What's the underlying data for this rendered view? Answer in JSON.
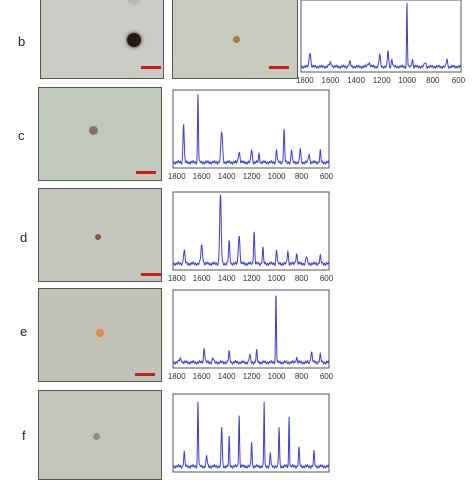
{
  "rows": [
    {
      "label": "b",
      "photos": [
        {
          "bg": "#c9cbc4",
          "particle_color": "#241a16"
        },
        {
          "bg": "#c6cbbd",
          "particle_color": "#b07a3e"
        }
      ],
      "spectrum": {
        "ticks": [
          1800,
          1600,
          1400,
          1200,
          1000,
          800,
          600
        ],
        "peaks": [
          [
            1760,
            0.22,
            14
          ],
          [
            1600,
            0.06,
            20
          ],
          [
            1450,
            0.07,
            14
          ],
          [
            1300,
            0.06,
            20
          ],
          [
            1215,
            0.18,
            12
          ],
          [
            1150,
            0.25,
            10
          ],
          [
            1120,
            0.12,
            10
          ],
          [
            1002,
            1.0,
            7
          ],
          [
            960,
            0.12,
            10
          ],
          [
            860,
            0.06,
            14
          ],
          [
            690,
            0.12,
            10
          ]
        ],
        "baseline": 0.05
      }
    },
    {
      "label": "c",
      "photos": [
        {
          "bg": "#c0c9bc",
          "particle_color": "#8a7268"
        }
      ],
      "spectrum": {
        "ticks": [
          1800,
          1600,
          1400,
          1200,
          1000,
          800,
          600
        ],
        "peaks": [
          [
            1745,
            0.55,
            11
          ],
          [
            1630,
            0.95,
            8
          ],
          [
            1440,
            0.42,
            16
          ],
          [
            1300,
            0.15,
            14
          ],
          [
            1200,
            0.18,
            12
          ],
          [
            1140,
            0.12,
            10
          ],
          [
            1000,
            0.18,
            10
          ],
          [
            940,
            0.45,
            10
          ],
          [
            880,
            0.18,
            10
          ],
          [
            810,
            0.2,
            10
          ],
          [
            740,
            0.12,
            12
          ],
          [
            650,
            0.16,
            10
          ]
        ],
        "baseline": 0.05
      }
    },
    {
      "label": "d",
      "photos": [
        {
          "bg": "#c2c6bd",
          "particle_color": "#7a5c44"
        }
      ],
      "spectrum": {
        "ticks": [
          1800,
          1600,
          1400,
          1200,
          1000,
          800,
          600
        ],
        "peaks": [
          [
            1740,
            0.18,
            14
          ],
          [
            1600,
            0.25,
            16
          ],
          [
            1450,
            0.95,
            14
          ],
          [
            1380,
            0.3,
            12
          ],
          [
            1300,
            0.4,
            14
          ],
          [
            1180,
            0.45,
            10
          ],
          [
            1110,
            0.22,
            10
          ],
          [
            1000,
            0.2,
            10
          ],
          [
            910,
            0.18,
            10
          ],
          [
            840,
            0.14,
            12
          ],
          [
            760,
            0.1,
            12
          ],
          [
            650,
            0.1,
            12
          ]
        ],
        "baseline": 0.06
      }
    },
    {
      "label": "e",
      "photos": [
        {
          "bg": "#c1c3b9",
          "particle_color": "#e08a52"
        }
      ],
      "spectrum": {
        "ticks": [
          1800,
          1600,
          1400,
          1200,
          1000,
          800,
          600
        ],
        "peaks": [
          [
            1770,
            0.05,
            20
          ],
          [
            1580,
            0.2,
            12
          ],
          [
            1510,
            0.06,
            12
          ],
          [
            1380,
            0.14,
            12
          ],
          [
            1215,
            0.1,
            12
          ],
          [
            1160,
            0.16,
            10
          ],
          [
            1005,
            0.95,
            8
          ],
          [
            840,
            0.07,
            12
          ],
          [
            720,
            0.14,
            14
          ],
          [
            650,
            0.1,
            12
          ]
        ],
        "baseline": 0.05
      }
    },
    {
      "label": "f",
      "photos": [
        {
          "bg": "#c1c5bc",
          "particle_color": "#8c8c86"
        }
      ],
      "spectrum": {
        "ticks": [],
        "peaks": [
          [
            1740,
            0.2,
            10
          ],
          [
            1630,
            0.9,
            8
          ],
          [
            1560,
            0.15,
            10
          ],
          [
            1440,
            0.55,
            10
          ],
          [
            1380,
            0.4,
            8
          ],
          [
            1300,
            0.72,
            8
          ],
          [
            1200,
            0.35,
            8
          ],
          [
            1100,
            0.9,
            7
          ],
          [
            1050,
            0.2,
            8
          ],
          [
            980,
            0.55,
            8
          ],
          [
            900,
            0.7,
            7
          ],
          [
            820,
            0.25,
            10
          ],
          [
            700,
            0.2,
            10
          ]
        ],
        "baseline": 0.05
      }
    }
  ],
  "line_color": "#3b3fd6",
  "scale_bar_color": "#cc1a14"
}
